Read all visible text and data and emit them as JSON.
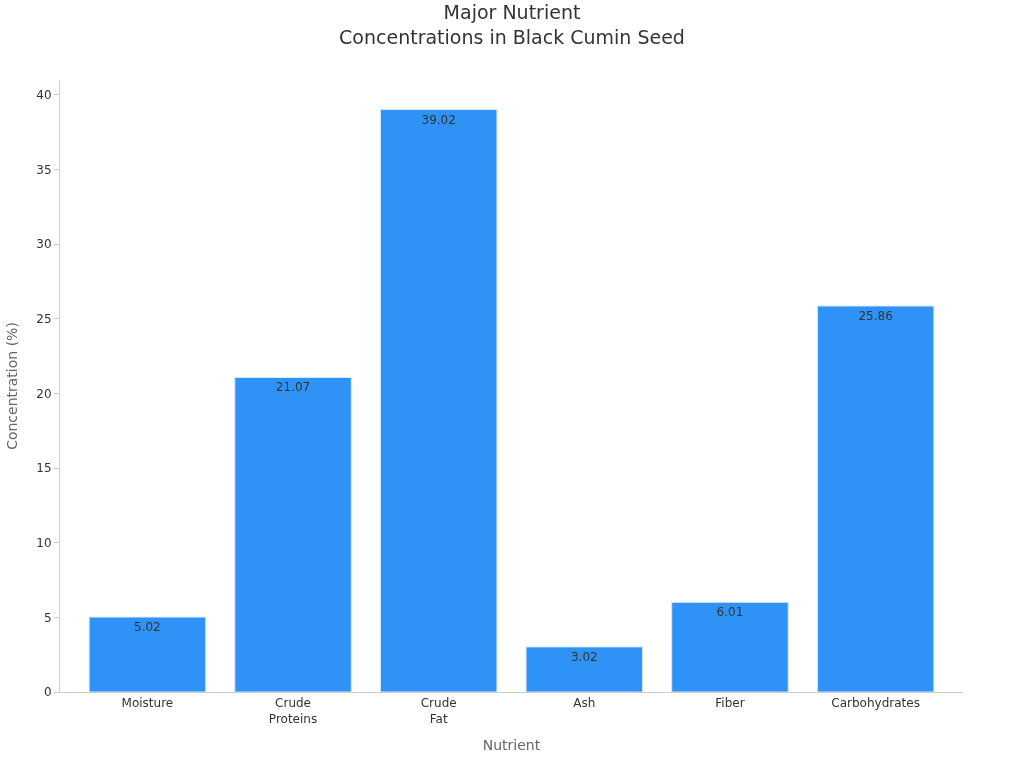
{
  "chart_data": {
    "type": "bar",
    "title": "Major Nutrient\nConcentrations in Black Cumin Seed",
    "xlabel": "Nutrient",
    "ylabel": "Concentration (%)",
    "categories": [
      "Moisture",
      "Crude\nProteins",
      "Crude\nFat",
      "Ash",
      "Fiber",
      "Carbohydrates"
    ],
    "values": [
      5.02,
      21.07,
      39.02,
      3.02,
      6.01,
      25.86
    ],
    "color": "#2f92f7",
    "ylim": [
      0,
      41
    ],
    "yticks": [
      0,
      5,
      10,
      15,
      20,
      25,
      30,
      35,
      40
    ],
    "data_labels": true
  }
}
